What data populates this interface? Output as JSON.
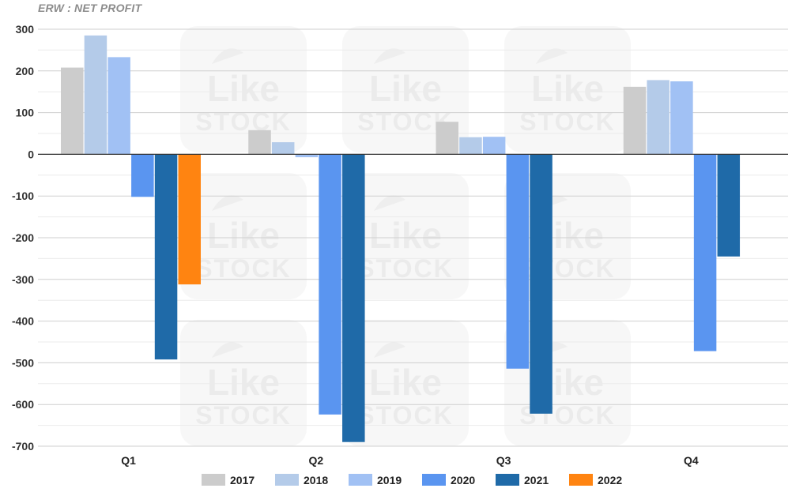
{
  "watermark": {
    "text": "Like",
    "subtext": "STOCK"
  },
  "colors": {
    "grid": "#d9d9d9",
    "zero_line": "#333333",
    "watermark": "#bdbdbd"
  },
  "chart_data": {
    "type": "bar",
    "title": "ERW : NET PROFIT",
    "categories": [
      "Q1",
      "Q2",
      "Q3",
      "Q4"
    ],
    "ylim": [
      -700,
      300
    ],
    "yticks": [
      300,
      200,
      100,
      0,
      -100,
      -200,
      -300,
      -400,
      -500,
      -600,
      -700
    ],
    "grid": true,
    "legend_position": "bottom",
    "series": [
      {
        "name": "2017",
        "color": "#cccccc",
        "values": [
          208,
          58,
          78,
          162
        ]
      },
      {
        "name": "2018",
        "color": "#b4cbe9",
        "values": [
          285,
          29,
          41,
          178
        ]
      },
      {
        "name": "2019",
        "color": "#a1c1f4",
        "values": [
          233,
          -7,
          42,
          175
        ]
      },
      {
        "name": "2020",
        "color": "#5a95f0",
        "values": [
          -102,
          -624,
          -514,
          -472
        ]
      },
      {
        "name": "2021",
        "color": "#1f6aa8",
        "values": [
          -492,
          -690,
          -622,
          -245
        ]
      },
      {
        "name": "2022",
        "color": "#ff8411",
        "values": [
          -312,
          null,
          null,
          null
        ]
      }
    ]
  }
}
